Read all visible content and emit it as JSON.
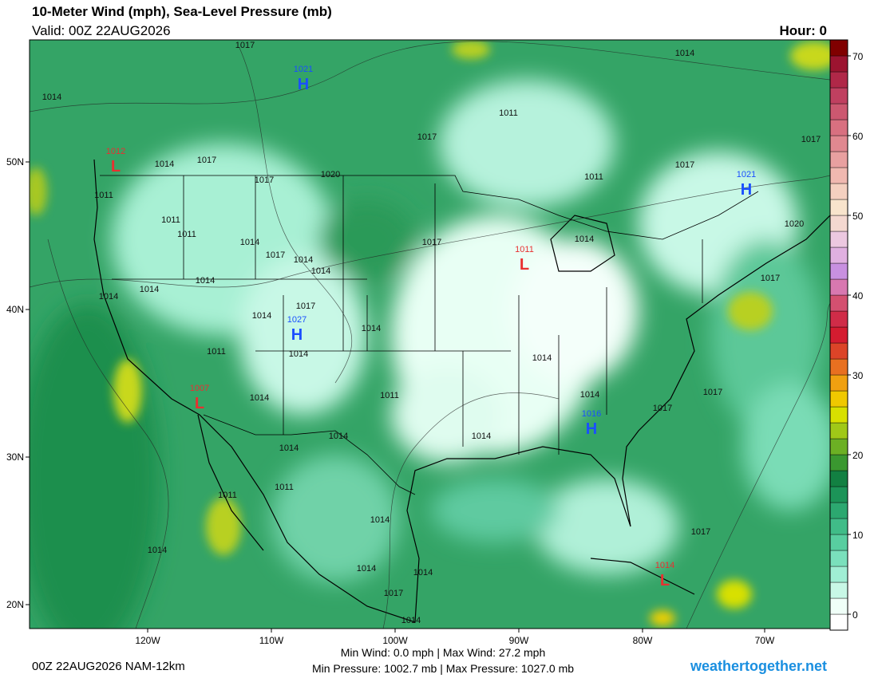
{
  "header": {
    "title": "10-Meter Wind (mph), Sea-Level Pressure (mb)",
    "valid": "Valid: 00Z 22AUG2026",
    "hour": "Hour: 0"
  },
  "map": {
    "lat_labels": [
      "50N",
      "40N",
      "30N",
      "20N"
    ],
    "lon_labels": [
      "120W",
      "110W",
      "100W",
      "90W",
      "80W",
      "70W"
    ],
    "centers": [
      {
        "letter": "H",
        "value": 1021
      },
      {
        "letter": "L",
        "value": 1012
      },
      {
        "letter": "H",
        "value": 1021
      },
      {
        "letter": "L",
        "value": 1011
      },
      {
        "letter": "H",
        "value": 1027
      },
      {
        "letter": "L",
        "value": 1007
      },
      {
        "letter": "H",
        "value": 1016
      },
      {
        "letter": "L",
        "value": 1014
      }
    ],
    "isobar_labels": [
      1017,
      1014,
      1014,
      1011,
      1017,
      1017,
      1014,
      1017,
      1017,
      1017,
      1020,
      1011,
      1011,
      1011,
      1011,
      1020,
      1014,
      1017,
      1014,
      1017,
      1014,
      1014,
      1014,
      1014,
      1017,
      1014,
      1017,
      1014,
      1014,
      1014,
      1011,
      1014,
      1014,
      1011,
      1014,
      1017,
      1017,
      1014,
      1014,
      1014,
      1011,
      1011,
      1014,
      1017,
      1014,
      1014,
      1014,
      1017,
      1014
    ]
  },
  "colorbar": {
    "lim": [
      -2,
      72
    ],
    "ticks": [
      0,
      10,
      20,
      30,
      40,
      50,
      60,
      70
    ],
    "colors": [
      "#ffffff",
      "#f0fff8",
      "#c8f8e6",
      "#a0eed4",
      "#7ae0bc",
      "#58cea0",
      "#40bc88",
      "#2ca870",
      "#1c9458",
      "#128042",
      "#3a9830",
      "#6cb024",
      "#a0c818",
      "#d8e000",
      "#f0c800",
      "#f0a010",
      "#e87020",
      "#dc4428",
      "#d41c30",
      "#d02c48",
      "#d45070",
      "#d878b0",
      "#c890e0",
      "#e0b0e0",
      "#ecc8e0",
      "#f4d8d0",
      "#f8e4cc",
      "#f4d0c0",
      "#f0b8b0",
      "#e8a0a0",
      "#e08890",
      "#d87080",
      "#cc5870",
      "#c04060",
      "#b02848",
      "#9c1430",
      "#800000"
    ]
  },
  "footer": {
    "run": "00Z 22AUG2026 NAM-12km",
    "wind": "Min Wind:  0.0 mph | Max Wind: 27.2 mph",
    "pressure": "Min Pressure: 1002.7 mb | Max Pressure: 1027.0 mb",
    "site": "weathertogether.net"
  }
}
